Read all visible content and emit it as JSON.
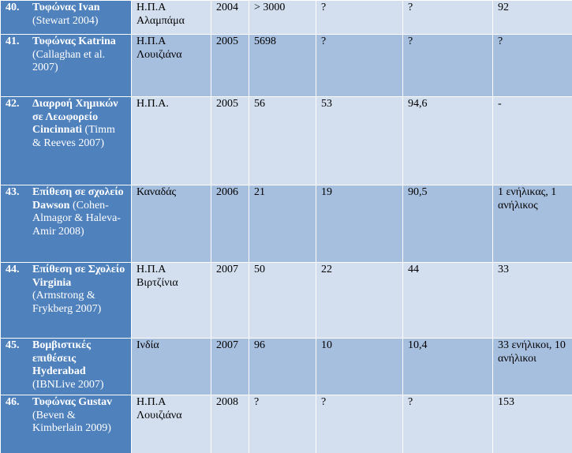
{
  "rows": [
    {
      "num": "40.",
      "title": "Τυφώνας Ivan",
      "ref": "(Stewart 2004)",
      "country": "Η.Π.Α Αλαμπάμα",
      "year": "2004",
      "c3": "> 3000",
      "c4": "?",
      "c5": "?",
      "c6": "92"
    },
    {
      "num": "41.",
      "title": "Τυφώνας Katrina",
      "ref": "(Callaghan et al. 2007)",
      "country": "Η.Π.Α Λουιζιάνα",
      "year": "2005",
      "c3": "5698",
      "c4": "?",
      "c5": "?",
      "c6": "?"
    },
    {
      "num": "42.",
      "title": "Διαρροή Χημικών σε Λεωφορείο Cincinnati",
      "ref": "(Timm & Reeves 2007)",
      "country": "Η.Π.Α.",
      "year": "2005",
      "c3": "56",
      "c4": "53",
      "c5": "94,6",
      "c6": "-"
    },
    {
      "num": "43.",
      "title": "Επίθεση σε σχολείο Dawson",
      "ref": "(Cohen-Almagor & Haleva-Amir 2008)",
      "country": "Καναδάς",
      "year": "2006",
      "c3": "21",
      "c4": "19",
      "c5": "90,5",
      "c6": "1 ενήλικας, 1 ανήλικος"
    },
    {
      "num": "44.",
      "title": "Επίθεση σε Σχολείο Virginia",
      "ref": "(Armstrong & Frykberg 2007)",
      "country": "Η.Π.Α Βιρτζίνια",
      "year": "2007",
      "c3": "50",
      "c4": "22",
      "c5": "44",
      "c6": "33"
    },
    {
      "num": "45.",
      "title": "Βομβιστικές επιθέσεις Hyderabad",
      "ref": "(IBNLive 2007)",
      "country": "Ινδία",
      "year": "2007",
      "c3": "96",
      "c4": "10",
      "c5": "10,4",
      "c6": "33 ενήλικοι, 10 ανήλικοι"
    },
    {
      "num": "46.",
      "title": "Τυφώνας Gustav",
      "ref": "(Beven & Kimberlain 2009)",
      "country": "Η.Π.Α Λουιζιάνα",
      "year": "2008",
      "c3": "?",
      "c4": "?",
      "c5": "?",
      "c6": "153"
    }
  ]
}
